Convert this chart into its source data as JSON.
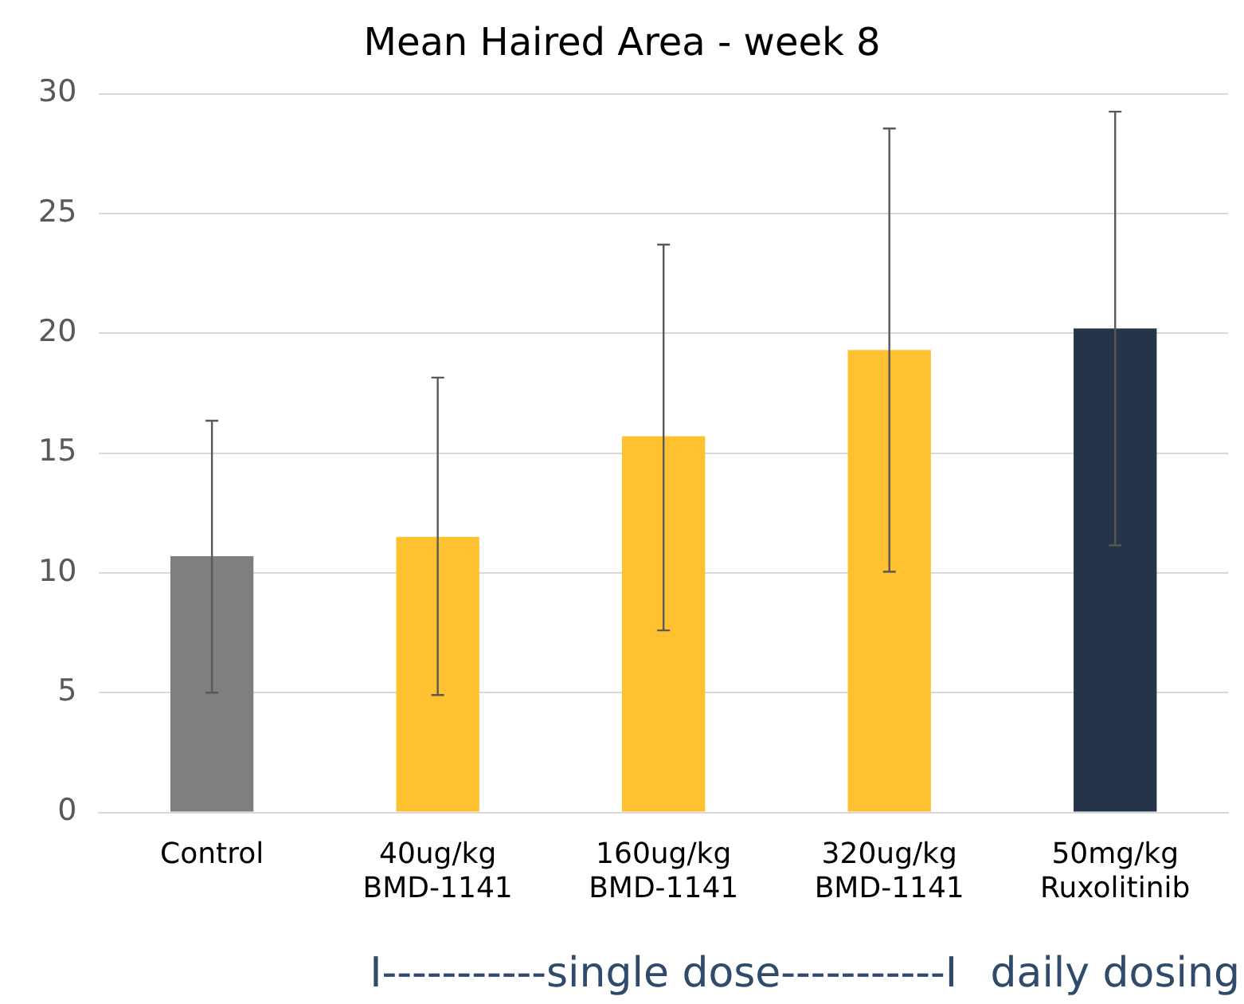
{
  "chart_data": {
    "type": "bar",
    "title": "Mean Haired Area - week 8",
    "categories": [
      "Control",
      "40ug/kg BMD-1141",
      "160ug/kg BMD-1141",
      "320ug/kg BMD-1141",
      "50mg/kg Ruxolitinib"
    ],
    "values": [
      10.7,
      11.5,
      15.7,
      19.3,
      20.2
    ],
    "colors": [
      "#7f7f7f",
      "#ffc12f",
      "#ffc12f",
      "#ffc12f",
      "#253449"
    ],
    "errors": [
      [
        5.0,
        16.35
      ],
      [
        4.9,
        18.15
      ],
      [
        7.6,
        23.7
      ],
      [
        10.05,
        28.55
      ],
      [
        11.15,
        29.25
      ]
    ],
    "ylim": [
      0,
      30
    ],
    "yticks": [
      0,
      5,
      10,
      15,
      20,
      25,
      30
    ],
    "grid": "y",
    "legend": false,
    "annotations": [
      "I-----------single dose-----------I",
      "daily dosing"
    ]
  }
}
